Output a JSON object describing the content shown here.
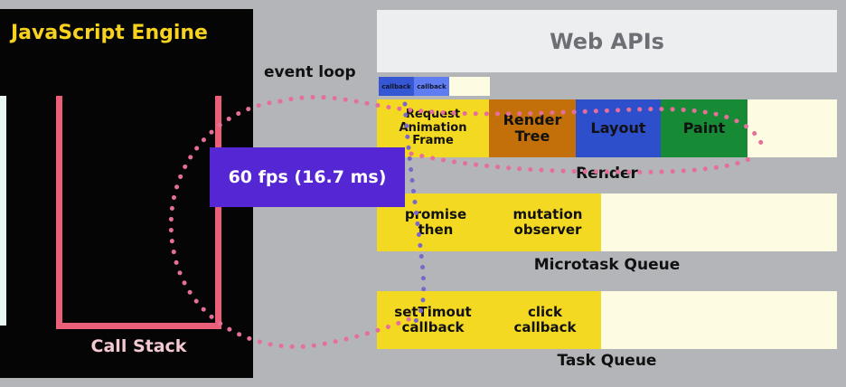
{
  "js_engine": {
    "title": "JavaScript Engine",
    "call_stack_label": "Call Stack"
  },
  "event_loop": {
    "label": "event loop",
    "fps_label": "60 fps (16.7 ms)"
  },
  "web_apis": {
    "title": "Web APIs",
    "callbacks": [
      "callback",
      "callback"
    ]
  },
  "render": {
    "cells": [
      "Request\nAnimation\nFrame",
      "Render\nTree",
      "Layout",
      "Paint"
    ],
    "label": "Render"
  },
  "microtask_queue": {
    "cells": [
      "promise\nthen",
      "mutation\nobserver"
    ],
    "label": "Microtask Queue"
  },
  "task_queue": {
    "cells": [
      "setTimout\ncallback",
      "click\ncallback"
    ],
    "label": "Task Queue"
  },
  "colors": {
    "background": "#b3b5b8",
    "engine_bg": "#050505",
    "engine_title": "#f7d21f",
    "call_stack": "#ec5f79",
    "queue_yellow": "#f4d923",
    "render_tree": "#c3700b",
    "layout": "#2e4fcc",
    "paint": "#178a36",
    "fps_box": "#5526d3",
    "loop_dots": "#e56f9a",
    "path_dots": "#7a68c9"
  }
}
